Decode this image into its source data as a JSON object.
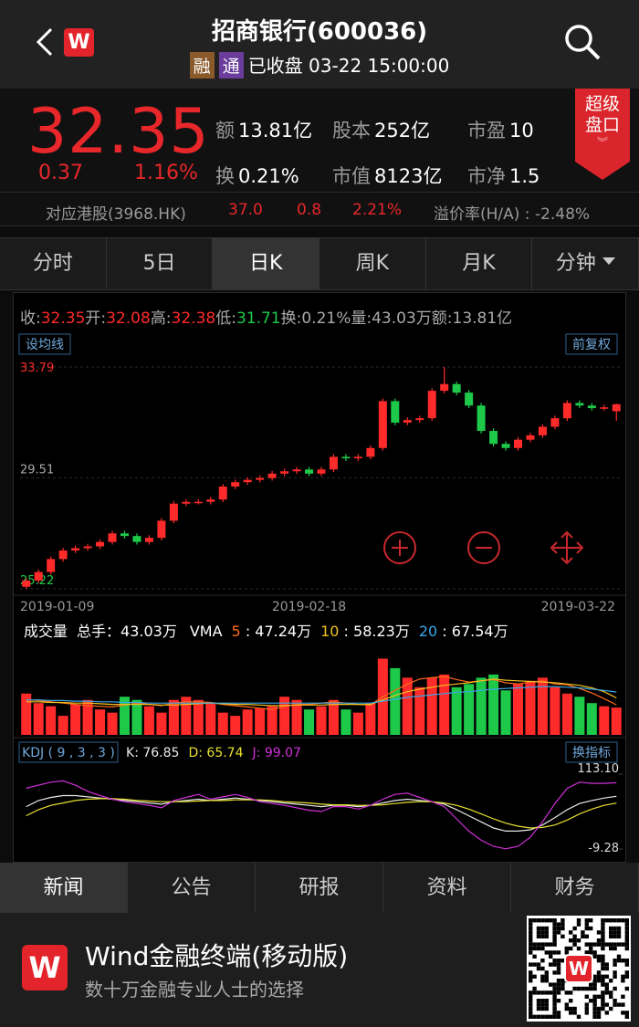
{
  "header": {
    "title": "招商银行(600036)",
    "badges": [
      "融",
      "通"
    ],
    "status": "已收盘",
    "time": "03-22 15:00:00"
  },
  "quote": {
    "price": "32.35",
    "change": "0.37",
    "change_pct": "1.16%",
    "fields": [
      {
        "label": "额",
        "value": "13.81亿"
      },
      {
        "label": "股本",
        "value": "252亿"
      },
      {
        "label": "市盈",
        "value": "10"
      },
      {
        "label": "换",
        "value": "0.21%"
      },
      {
        "label": "市值",
        "value": "8123亿"
      },
      {
        "label": "市净",
        "value": "1.5"
      }
    ],
    "super_button": [
      "超级",
      "盘口"
    ]
  },
  "hk": {
    "label": "对应港股(3968.HK)",
    "price": "37.0",
    "change": "0.8",
    "change_pct": "2.21%",
    "premium": "溢价率(H/A) : -2.48%"
  },
  "period_tabs": {
    "items": [
      "分时",
      "5日",
      "日K",
      "周K",
      "月K",
      "分钟"
    ],
    "active": 2
  },
  "chart_data": {
    "type": "candlestick",
    "up_color": "#ff2a2a",
    "down_color": "#1ec94a",
    "summary": [
      {
        "label": "收:",
        "value": "32.35",
        "color": "#ff2a2a"
      },
      {
        "label": "开:",
        "value": "32.08",
        "color": "#ff2a2a"
      },
      {
        "label": "高:",
        "value": "32.38",
        "color": "#ff2a2a"
      },
      {
        "label": "低:",
        "value": "31.71",
        "color": "#1ec94a"
      },
      {
        "label": "换:",
        "value": "0.21%",
        "color": "#aaaaaa"
      },
      {
        "label": "量:",
        "value": "43.03万",
        "color": "#aaaaaa"
      },
      {
        "label": "额:",
        "value": "13.81亿",
        "color": "#aaaaaa"
      }
    ],
    "ma_button": "设均线",
    "adjust_button": "前复权",
    "categories": [
      "2019-01-09",
      null,
      null,
      null,
      null,
      null,
      null,
      null,
      null,
      null,
      null,
      null,
      null,
      null,
      null,
      null,
      null,
      null,
      null,
      null,
      null,
      null,
      null,
      "2019-02-18",
      null,
      null,
      null,
      null,
      null,
      null,
      null,
      null,
      null,
      null,
      null,
      null,
      null,
      null,
      null,
      null,
      null,
      null,
      null,
      null,
      null,
      null,
      null,
      null,
      "2019-03-22"
    ],
    "open": [
      25.3,
      25.54,
      25.87,
      26.37,
      26.7,
      26.79,
      26.86,
      27.03,
      27.36,
      27.26,
      27.03,
      27.19,
      27.85,
      28.51,
      28.58,
      28.58,
      28.67,
      29.17,
      29.34,
      29.43,
      29.5,
      29.67,
      29.76,
      29.83,
      29.67,
      29.83,
      30.32,
      30.26,
      30.32,
      30.66,
      32.47,
      31.64,
      31.74,
      31.81,
      32.87,
      33.13,
      32.8,
      32.3,
      31.32,
      30.82,
      30.66,
      30.98,
      31.15,
      31.48,
      31.81,
      32.4,
      32.3,
      32.2,
      32.08
    ],
    "close": [
      25.54,
      25.87,
      26.37,
      26.7,
      26.79,
      26.86,
      27.03,
      27.36,
      27.26,
      27.03,
      27.19,
      27.85,
      28.51,
      28.58,
      28.58,
      28.67,
      29.17,
      29.34,
      29.43,
      29.5,
      29.67,
      29.76,
      29.83,
      29.67,
      29.83,
      30.32,
      30.26,
      30.32,
      30.66,
      32.47,
      31.64,
      31.74,
      31.81,
      32.87,
      33.13,
      32.8,
      32.3,
      31.32,
      30.82,
      30.66,
      30.98,
      31.15,
      31.48,
      31.81,
      32.4,
      32.3,
      32.2,
      32.23,
      32.35
    ],
    "high": [
      25.64,
      25.97,
      26.47,
      26.8,
      26.89,
      26.96,
      27.13,
      27.46,
      27.46,
      27.36,
      27.29,
      27.95,
      28.61,
      28.68,
      28.68,
      28.77,
      29.27,
      29.44,
      29.53,
      29.6,
      29.77,
      29.86,
      29.93,
      29.93,
      29.93,
      30.42,
      30.42,
      30.42,
      30.76,
      32.57,
      32.57,
      31.84,
      31.91,
      32.97,
      33.79,
      33.23,
      32.9,
      32.4,
      31.42,
      30.92,
      31.08,
      31.25,
      31.58,
      31.91,
      32.5,
      32.5,
      32.4,
      32.33,
      32.38
    ],
    "low": [
      25.22,
      25.44,
      25.77,
      26.27,
      26.6,
      26.69,
      26.76,
      26.93,
      27.16,
      26.93,
      26.93,
      27.09,
      27.75,
      28.41,
      28.48,
      28.48,
      28.57,
      29.07,
      29.24,
      29.33,
      29.4,
      29.57,
      29.66,
      29.57,
      29.57,
      29.73,
      30.16,
      30.16,
      30.22,
      30.56,
      31.54,
      31.54,
      31.64,
      31.71,
      32.77,
      32.7,
      32.2,
      31.22,
      30.72,
      30.56,
      30.56,
      30.88,
      31.05,
      31.38,
      31.71,
      32.2,
      32.1,
      32.1,
      31.71
    ],
    "ylim": [
      25.22,
      33.79
    ],
    "yticks": [
      33.79,
      29.51,
      25.22
    ],
    "grid": true,
    "volume": {
      "title": "成交量",
      "total_label": "总手：",
      "total": "43.03万",
      "vma_label": "VMA",
      "separator": " : ",
      "values": [
        65,
        50,
        45,
        30,
        48,
        55,
        40,
        35,
        60,
        55,
        45,
        35,
        55,
        60,
        55,
        50,
        35,
        30,
        40,
        42,
        45,
        60,
        55,
        40,
        45,
        55,
        40,
        35,
        50,
        120,
        105,
        90,
        75,
        90,
        95,
        75,
        80,
        90,
        95,
        70,
        80,
        85,
        90,
        75,
        65,
        60,
        50,
        45,
        43.03
      ],
      "ylim": [
        0,
        125
      ],
      "series": [
        {
          "name": "5",
          "color": "#ff6a1a",
          "value_label": "47.24万",
          "values": [
            55,
            54,
            52,
            50,
            48,
            46,
            45,
            44,
            47,
            50,
            48,
            46,
            50,
            52,
            52,
            51,
            48,
            46,
            44,
            42,
            40,
            45,
            48,
            48,
            50,
            52,
            50,
            48,
            47,
            60,
            70,
            80,
            88,
            90,
            92,
            87,
            83,
            85,
            87,
            82,
            80,
            83,
            85,
            80,
            79,
            73,
            66,
            57,
            47.24
          ]
        },
        {
          "name": "10",
          "color": "#f0c020",
          "value_label": "58.23万",
          "values": [
            52,
            52,
            51,
            51,
            50,
            50,
            49,
            48,
            48,
            48,
            48,
            47,
            47,
            48,
            49,
            50,
            49,
            48,
            48,
            47,
            46,
            46,
            47,
            47,
            47,
            48,
            48,
            48,
            48,
            55,
            62,
            68,
            72,
            75,
            78,
            80,
            82,
            85,
            88,
            86,
            85,
            84,
            83,
            82,
            80,
            78,
            74,
            68,
            58.23
          ]
        },
        {
          "name": "20",
          "color": "#3aa8e8",
          "value_label": "67.54万",
          "values": [
            55,
            55,
            54,
            54,
            53,
            53,
            52,
            52,
            51,
            51,
            50,
            50,
            50,
            50,
            50,
            50,
            50,
            50,
            50,
            50,
            50,
            50,
            50,
            50,
            50,
            50,
            50,
            50,
            50,
            53,
            56,
            59,
            61,
            63,
            65,
            67,
            68,
            70,
            72,
            73,
            74,
            75,
            76,
            76,
            75,
            74,
            72,
            70,
            67.54
          ]
        }
      ]
    },
    "kdj": {
      "title": "KDJ ( 9 , 3 , 3 )",
      "button": "换指标",
      "separator": ": ",
      "ylim": [
        -9.28,
        113.1
      ],
      "yticks": [
        {
          "value": 113.1,
          "label": "113.10"
        },
        -9.28
      ],
      "series": [
        {
          "name": "K",
          "color": "#e8e8e8",
          "value_label": "76.85",
          "values": [
            60,
            70,
            75,
            78,
            78,
            76,
            74,
            72,
            70,
            68,
            66,
            64,
            68,
            70,
            72,
            70,
            72,
            74,
            72,
            70,
            68,
            66,
            64,
            62,
            60,
            62,
            62,
            60,
            62,
            66,
            70,
            72,
            70,
            68,
            64,
            55,
            45,
            35,
            25,
            20,
            20,
            22,
            30,
            42,
            55,
            65,
            70,
            74,
            76.85
          ]
        },
        {
          "name": "D",
          "color": "#e8e030",
          "value_label": "65.74",
          "values": [
            45,
            55,
            62,
            66,
            70,
            72,
            73,
            73,
            72,
            70,
            69,
            68,
            68,
            68,
            69,
            70,
            70,
            71,
            71,
            71,
            70,
            68,
            67,
            66,
            64,
            63,
            63,
            62,
            62,
            63,
            65,
            67,
            68,
            68,
            66,
            62,
            56,
            48,
            40,
            33,
            28,
            25,
            26,
            30,
            38,
            48,
            56,
            62,
            65.74
          ]
        },
        {
          "name": "J",
          "color": "#d030d8",
          "value_label": "99.07",
          "values": [
            90,
            95,
            100,
            102,
            95,
            85,
            78,
            72,
            68,
            65,
            62,
            58,
            70,
            75,
            80,
            72,
            76,
            80,
            75,
            68,
            65,
            62,
            58,
            54,
            52,
            60,
            60,
            56,
            62,
            72,
            80,
            82,
            75,
            68,
            60,
            40,
            20,
            5,
            -5,
            -9,
            -5,
            10,
            35,
            65,
            90,
            100,
            98,
            98,
            99.07
          ]
        }
      ]
    }
  },
  "news_tabs": {
    "items": [
      "新闻",
      "公告",
      "研报",
      "资料",
      "财务"
    ],
    "active": 0
  },
  "footer": {
    "title": "Wind金融终端(移动版)",
    "subtitle": "数十万金融专业人士的选择"
  }
}
